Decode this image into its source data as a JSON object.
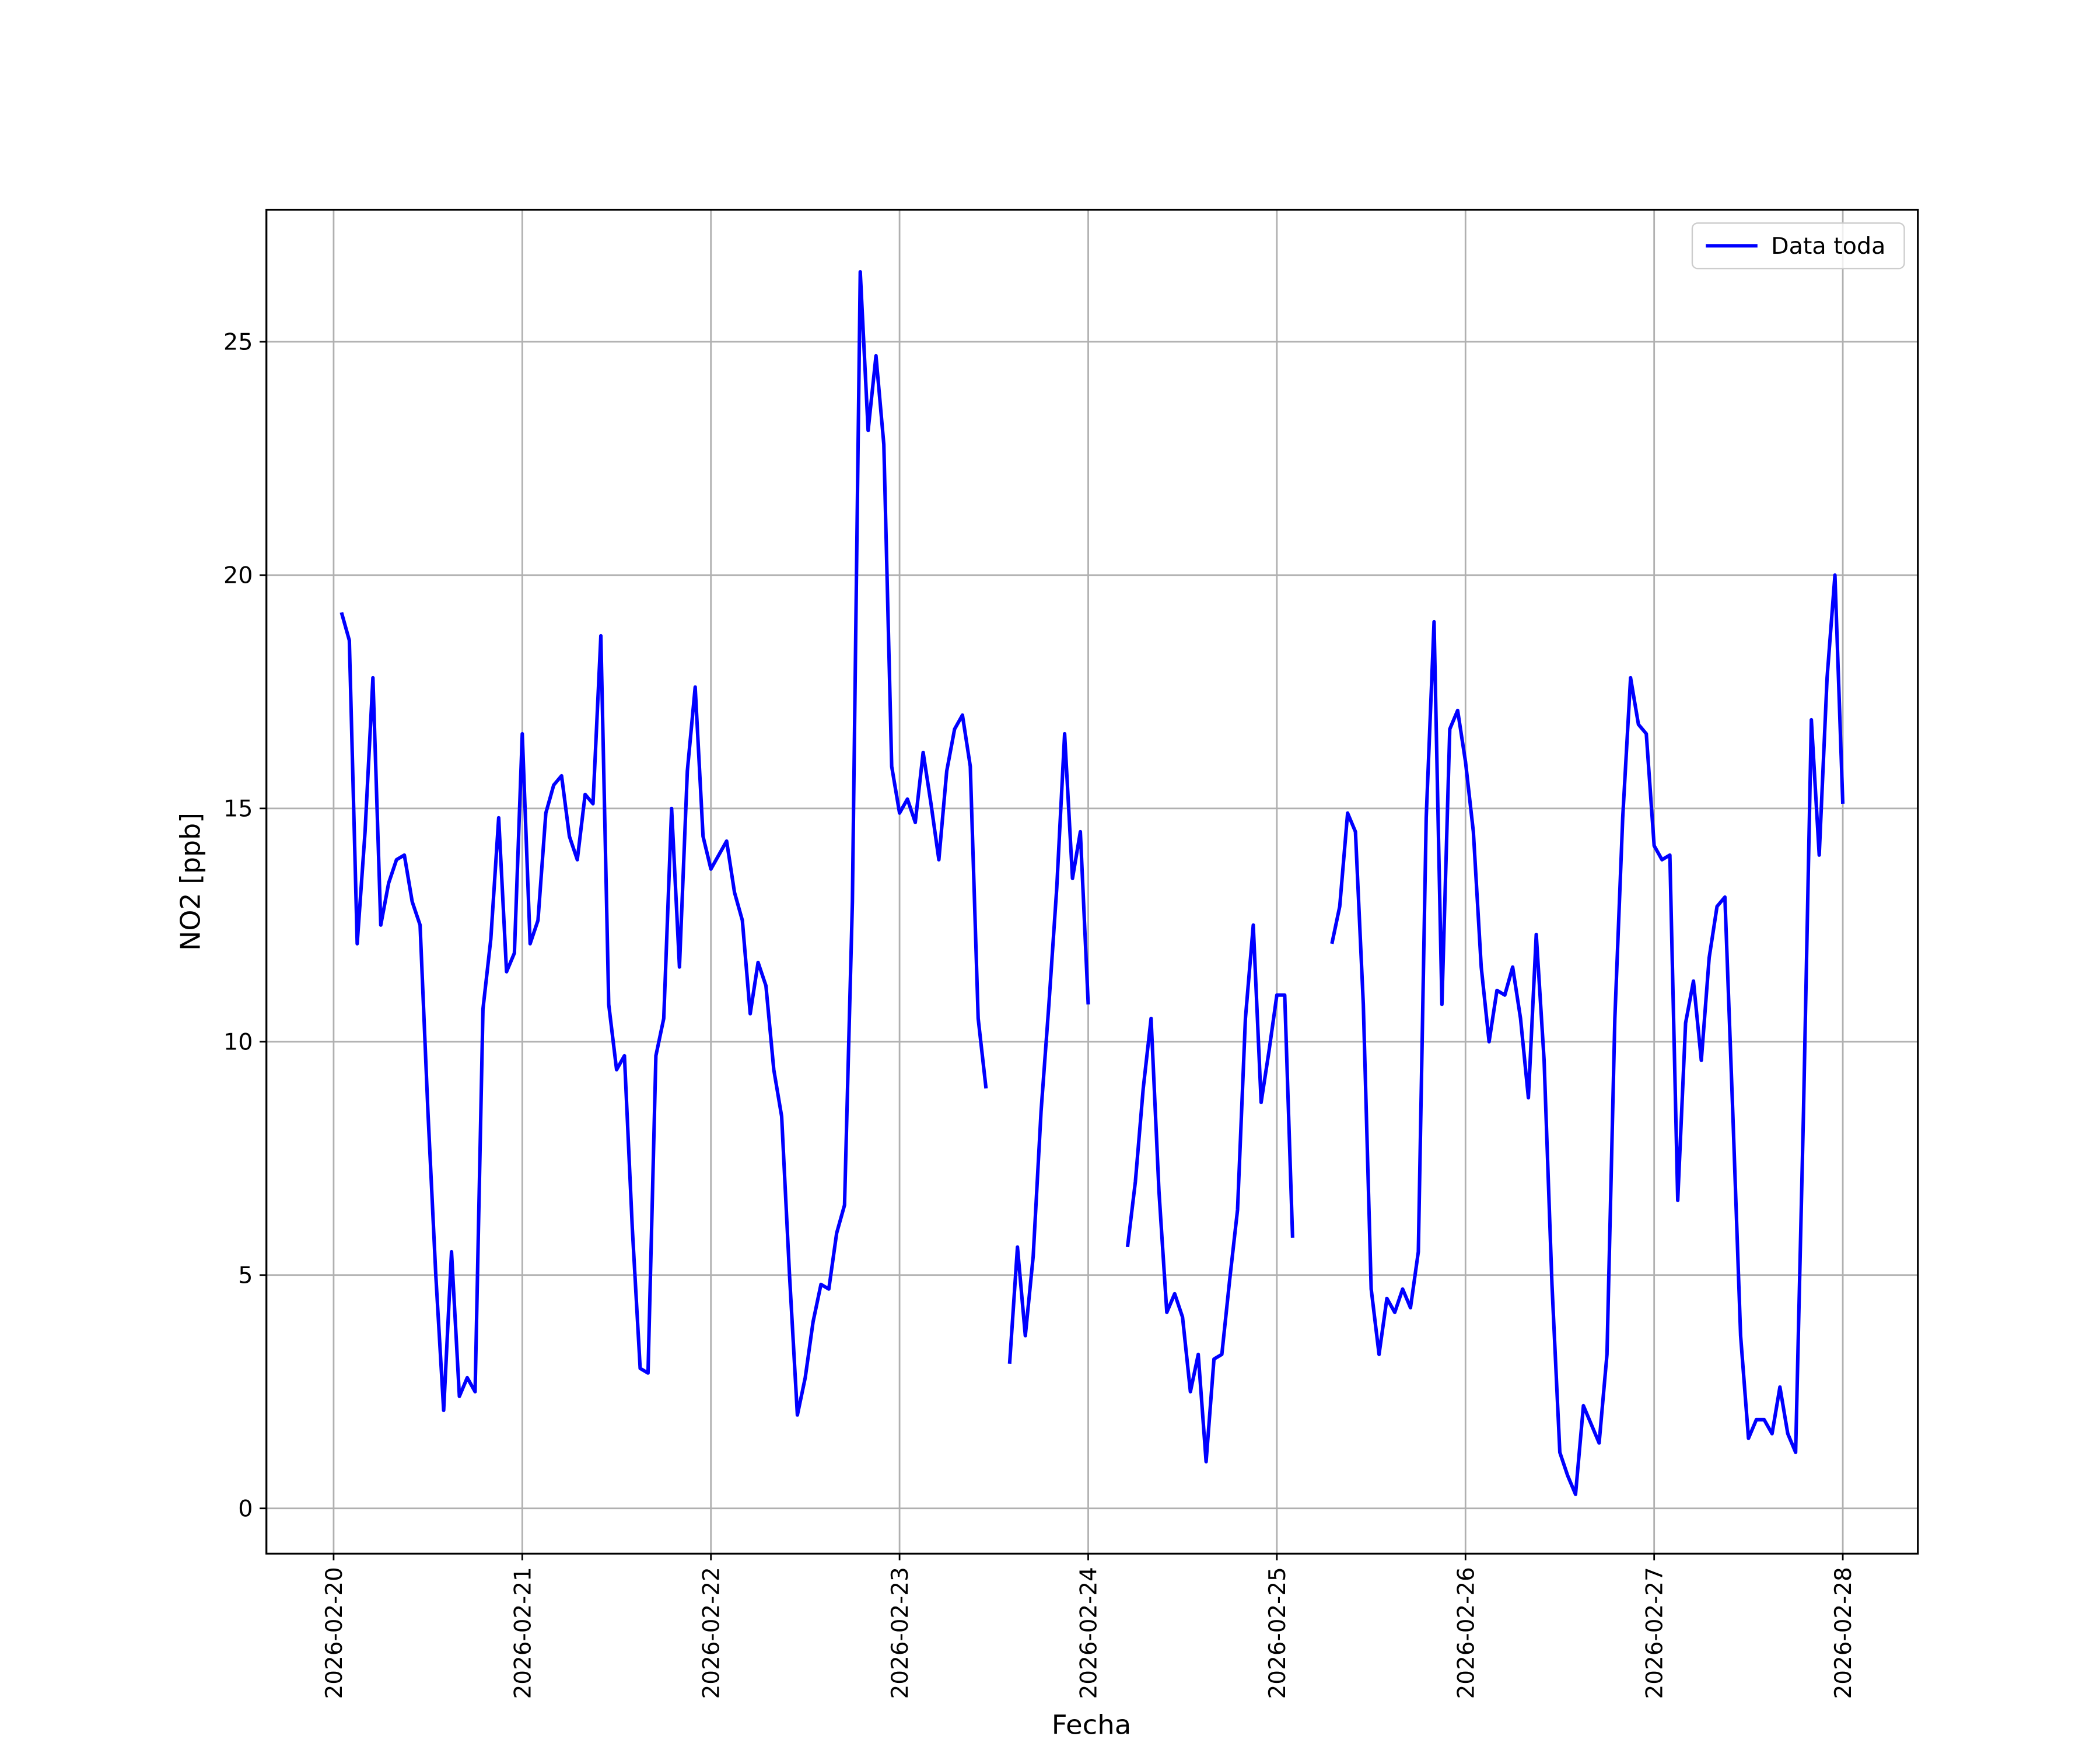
{
  "chart_data": {
    "type": "line",
    "xlabel": "Fecha",
    "ylabel": "NO2 [ppb]",
    "x": [
      "2026-02-20T01:00",
      "2026-02-20T02:00",
      "2026-02-20T03:00",
      "2026-02-20T04:00",
      "2026-02-20T05:00",
      "2026-02-20T06:00",
      "2026-02-20T07:00",
      "2026-02-20T08:00",
      "2026-02-20T09:00",
      "2026-02-20T10:00",
      "2026-02-20T11:00",
      "2026-02-20T12:00",
      "2026-02-20T13:00",
      "2026-02-20T14:00",
      "2026-02-20T15:00",
      "2026-02-20T16:00",
      "2026-02-20T17:00",
      "2026-02-20T18:00",
      "2026-02-20T19:00",
      "2026-02-20T20:00",
      "2026-02-20T21:00",
      "2026-02-20T22:00",
      "2026-02-20T23:00",
      "2026-02-21T00:00",
      "2026-02-21T01:00",
      "2026-02-21T02:00",
      "2026-02-21T03:00",
      "2026-02-21T04:00",
      "2026-02-21T05:00",
      "2026-02-21T06:00",
      "2026-02-21T07:00",
      "2026-02-21T08:00",
      "2026-02-21T09:00",
      "2026-02-21T10:00",
      "2026-02-21T11:00",
      "2026-02-21T12:00",
      "2026-02-21T13:00",
      "2026-02-21T14:00",
      "2026-02-21T15:00",
      "2026-02-21T16:00",
      "2026-02-21T17:00",
      "2026-02-21T18:00",
      "2026-02-21T19:00",
      "2026-02-21T20:00",
      "2026-02-21T21:00",
      "2026-02-21T22:00",
      "2026-02-21T23:00",
      "2026-02-22T00:00",
      "2026-02-22T01:00",
      "2026-02-22T02:00",
      "2026-02-22T03:00",
      "2026-02-22T04:00",
      "2026-02-22T05:00",
      "2026-02-22T06:00",
      "2026-02-22T07:00",
      "2026-02-22T08:00",
      "2026-02-22T09:00",
      "2026-02-22T10:00",
      "2026-02-22T11:00",
      "2026-02-22T12:00",
      "2026-02-22T13:00",
      "2026-02-22T14:00",
      "2026-02-22T15:00",
      "2026-02-22T16:00",
      "2026-02-22T17:00",
      "2026-02-22T18:00",
      "2026-02-22T19:00",
      "2026-02-22T20:00",
      "2026-02-22T21:00",
      "2026-02-22T22:00",
      "2026-02-22T23:00",
      "2026-02-23T00:00",
      "2026-02-23T01:00",
      "2026-02-23T02:00",
      "2026-02-23T03:00",
      "2026-02-23T04:00",
      "2026-02-23T05:00",
      "2026-02-23T06:00",
      "2026-02-23T07:00",
      "2026-02-23T08:00",
      "2026-02-23T09:00",
      "2026-02-23T10:00",
      "2026-02-23T11:00",
      "2026-02-23T12:00",
      "2026-02-23T13:00",
      "2026-02-23T14:00",
      "2026-02-23T15:00",
      "2026-02-23T16:00",
      "2026-02-23T17:00",
      "2026-02-23T18:00",
      "2026-02-23T19:00",
      "2026-02-23T20:00",
      "2026-02-23T21:00",
      "2026-02-23T22:00",
      "2026-02-23T23:00",
      "2026-02-24T00:00",
      "2026-02-24T01:00",
      "2026-02-24T02:00",
      "2026-02-24T03:00",
      "2026-02-24T04:00",
      "2026-02-24T05:00",
      "2026-02-24T06:00",
      "2026-02-24T07:00",
      "2026-02-24T08:00",
      "2026-02-24T09:00",
      "2026-02-24T10:00",
      "2026-02-24T11:00",
      "2026-02-24T12:00",
      "2026-02-24T13:00",
      "2026-02-24T14:00",
      "2026-02-24T15:00",
      "2026-02-24T16:00",
      "2026-02-24T17:00",
      "2026-02-24T18:00",
      "2026-02-24T19:00",
      "2026-02-24T20:00",
      "2026-02-24T21:00",
      "2026-02-24T22:00",
      "2026-02-24T23:00",
      "2026-02-25T00:00",
      "2026-02-25T01:00",
      "2026-02-25T02:00",
      "2026-02-25T03:00",
      "2026-02-25T04:00",
      "2026-02-25T05:00",
      "2026-02-25T06:00",
      "2026-02-25T07:00",
      "2026-02-25T08:00",
      "2026-02-25T09:00",
      "2026-02-25T10:00",
      "2026-02-25T11:00",
      "2026-02-25T12:00",
      "2026-02-25T13:00",
      "2026-02-25T14:00",
      "2026-02-25T15:00",
      "2026-02-25T16:00",
      "2026-02-25T17:00",
      "2026-02-25T18:00",
      "2026-02-25T19:00",
      "2026-02-25T20:00",
      "2026-02-25T21:00",
      "2026-02-25T22:00",
      "2026-02-25T23:00",
      "2026-02-26T00:00",
      "2026-02-26T01:00",
      "2026-02-26T02:00",
      "2026-02-26T03:00",
      "2026-02-26T04:00",
      "2026-02-26T05:00",
      "2026-02-26T06:00",
      "2026-02-26T07:00",
      "2026-02-26T08:00",
      "2026-02-26T09:00",
      "2026-02-26T10:00",
      "2026-02-26T11:00",
      "2026-02-26T12:00",
      "2026-02-26T13:00",
      "2026-02-26T14:00",
      "2026-02-26T15:00",
      "2026-02-26T16:00",
      "2026-02-26T17:00",
      "2026-02-26T18:00",
      "2026-02-26T19:00",
      "2026-02-26T20:00",
      "2026-02-26T21:00",
      "2026-02-26T22:00",
      "2026-02-26T23:00",
      "2026-02-27T00:00",
      "2026-02-27T01:00",
      "2026-02-27T02:00",
      "2026-02-27T03:00",
      "2026-02-27T04:00",
      "2026-02-27T05:00",
      "2026-02-27T06:00",
      "2026-02-27T07:00",
      "2026-02-27T08:00",
      "2026-02-27T09:00",
      "2026-02-27T10:00",
      "2026-02-27T11:00",
      "2026-02-27T12:00",
      "2026-02-27T13:00",
      "2026-02-27T14:00",
      "2026-02-27T15:00",
      "2026-02-27T16:00",
      "2026-02-27T17:00",
      "2026-02-27T18:00",
      "2026-02-27T19:00",
      "2026-02-27T20:00",
      "2026-02-27T21:00",
      "2026-02-27T22:00",
      "2026-02-27T23:00",
      "2026-02-28T00:00"
    ],
    "series": [
      {
        "name": "Data toda",
        "color": "#0000ff",
        "values": [
          19.2,
          18.6,
          12.1,
          14.5,
          17.8,
          12.5,
          13.4,
          13.9,
          14.0,
          13.0,
          12.5,
          8.5,
          5.0,
          2.1,
          5.5,
          2.4,
          2.8,
          2.5,
          10.7,
          12.2,
          14.8,
          11.5,
          11.9,
          16.6,
          12.1,
          12.6,
          14.9,
          15.5,
          15.7,
          14.4,
          13.9,
          15.3,
          15.1,
          18.7,
          10.8,
          9.4,
          9.7,
          6.0,
          3.0,
          2.9,
          9.7,
          10.5,
          15.0,
          11.6,
          15.8,
          17.6,
          14.4,
          13.7,
          14.0,
          14.3,
          13.2,
          12.6,
          10.6,
          11.7,
          11.2,
          9.4,
          8.4,
          5.0,
          2.0,
          2.8,
          4.0,
          4.8,
          4.7,
          5.9,
          6.5,
          13.0,
          26.5,
          23.1,
          24.7,
          22.8,
          15.9,
          14.9,
          15.2,
          14.7,
          16.2,
          15.1,
          13.9,
          15.8,
          16.7,
          17.0,
          15.9,
          10.5,
          9.0,
          null,
          null,
          3.1,
          5.6,
          3.7,
          5.4,
          8.5,
          10.8,
          13.3,
          16.6,
          13.5,
          14.5,
          10.8,
          null,
          null,
          null,
          null,
          5.6,
          7.0,
          9.0,
          10.5,
          6.8,
          4.2,
          4.6,
          4.1,
          2.5,
          3.3,
          1.0,
          3.2,
          3.3,
          4.9,
          6.4,
          10.5,
          12.5,
          8.7,
          9.8,
          11.0,
          11.0,
          5.8,
          null,
          null,
          null,
          null,
          12.1,
          12.9,
          14.9,
          14.5,
          10.8,
          4.7,
          3.3,
          4.5,
          4.2,
          4.7,
          4.3,
          5.5,
          14.8,
          19.0,
          10.8,
          16.7,
          17.1,
          16.0,
          14.5,
          11.6,
          10.0,
          11.1,
          11.0,
          11.6,
          10.5,
          8.8,
          12.3,
          9.6,
          4.8,
          1.2,
          0.7,
          0.3,
          2.2,
          1.8,
          1.4,
          3.3,
          10.5,
          14.8,
          17.8,
          16.8,
          16.6,
          14.2,
          13.9,
          14.0,
          6.6,
          10.4,
          11.3,
          9.6,
          11.8,
          12.9,
          13.1,
          8.5,
          3.7,
          1.5,
          1.9,
          1.9,
          1.6,
          2.6,
          1.6,
          1.2,
          8.5,
          16.9,
          14.0,
          17.8,
          20.0,
          15.1
        ]
      }
    ],
    "xlim": [
      "2026-02-19T15:27",
      "2026-02-28T09:33"
    ],
    "xticks": [
      "2026-02-20",
      "2026-02-21",
      "2026-02-22",
      "2026-02-23",
      "2026-02-24",
      "2026-02-25",
      "2026-02-26",
      "2026-02-27",
      "2026-02-28"
    ],
    "ylim": [
      -0.97,
      27.83
    ],
    "yticks": [
      0,
      5,
      10,
      15,
      20,
      25
    ],
    "grid": true,
    "legend": "upper right"
  }
}
